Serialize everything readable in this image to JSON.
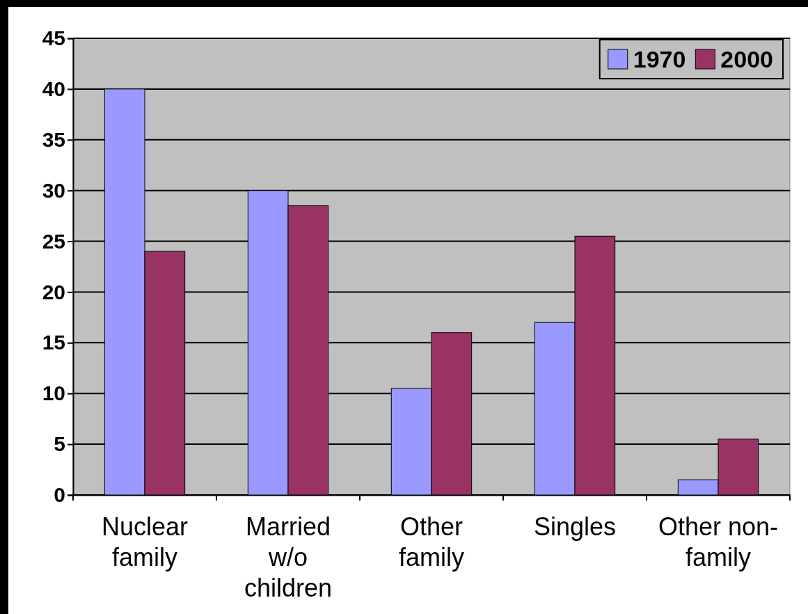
{
  "chart_data": {
    "type": "bar",
    "categories": [
      "Nuclear family",
      "Married w/o children",
      "Other family",
      "Singles",
      "Other non-family"
    ],
    "series": [
      {
        "name": "1970",
        "color": "#9999ff",
        "values": [
          40,
          30,
          10.5,
          17,
          1.5
        ]
      },
      {
        "name": "2000",
        "color": "#993366",
        "values": [
          24,
          28.5,
          16,
          25.5,
          5.5
        ]
      }
    ],
    "ylim": [
      0,
      45
    ],
    "yticks": [
      0,
      5,
      10,
      15,
      20,
      25,
      30,
      35,
      40,
      45
    ],
    "grid": "y",
    "legend": "top right"
  }
}
